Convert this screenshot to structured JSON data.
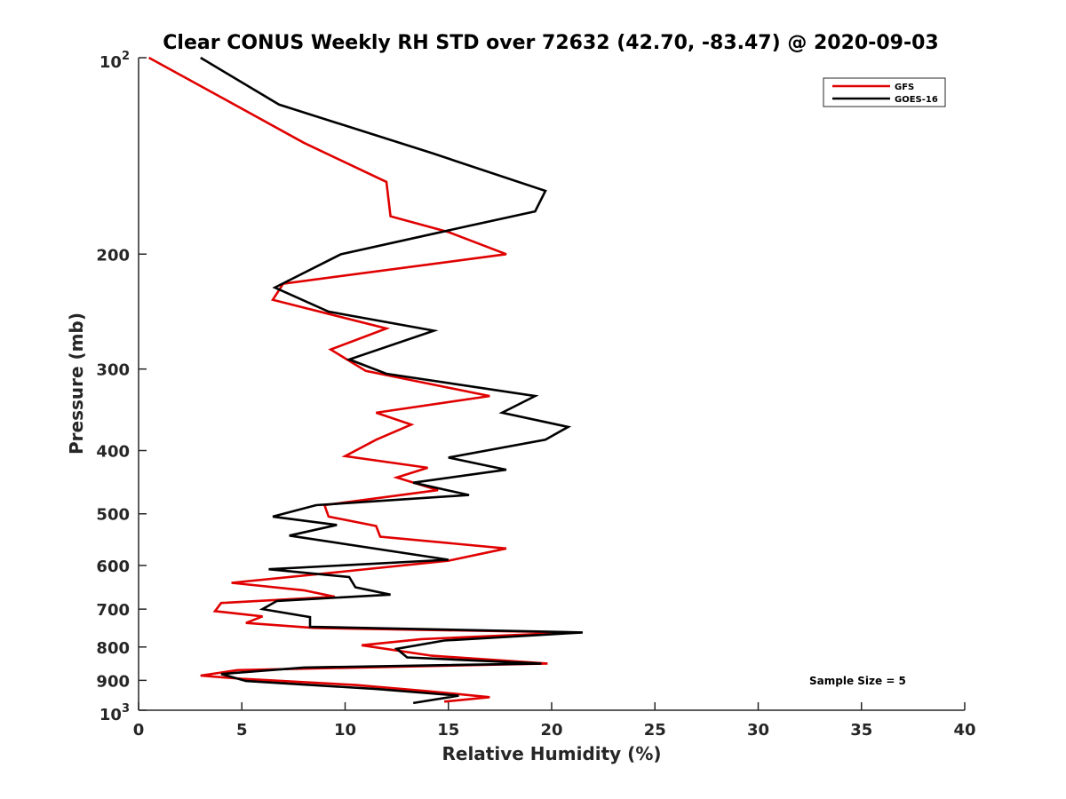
{
  "chart_data": {
    "type": "line",
    "title": "Clear CONUS Weekly RH STD over 72632 (42.70, -83.47) @ 2020-09-03",
    "xlabel": "Relative Humidity (%)",
    "ylabel": "Pressure (mb)",
    "xlim": [
      0,
      40
    ],
    "ylim": [
      100,
      1000
    ],
    "y_scale": "log",
    "y_reversed": true,
    "xticks": [
      0,
      5,
      10,
      15,
      20,
      25,
      30,
      35,
      40
    ],
    "xtick_labels": [
      "0",
      "5",
      "10",
      "15",
      "20",
      "25",
      "30",
      "35",
      "40"
    ],
    "yticks": [
      200,
      300,
      400,
      500,
      600,
      700,
      800,
      900
    ],
    "ytick_labels": [
      "200",
      "300",
      "400",
      "500",
      "600",
      "700",
      "800",
      "900"
    ],
    "y_end_labels": {
      "top_base": "10",
      "top_exp": "2",
      "bottom_base": "10",
      "bottom_exp": "3"
    },
    "legend_position": "top-right",
    "annotation": "Sample Size = 5",
    "series": [
      {
        "name": "GFS",
        "color": "#e00000",
        "points": [
          [
            0.5,
            100
          ],
          [
            4.0,
            115
          ],
          [
            8.0,
            135
          ],
          [
            12.0,
            155
          ],
          [
            12.2,
            175
          ],
          [
            15.0,
            185
          ],
          [
            17.8,
            200
          ],
          [
            7.0,
            222
          ],
          [
            6.5,
            235
          ],
          [
            12.0,
            260
          ],
          [
            9.3,
            280
          ],
          [
            11.0,
            302
          ],
          [
            17.0,
            330
          ],
          [
            11.5,
            350
          ],
          [
            13.2,
            365
          ],
          [
            11.5,
            385
          ],
          [
            10.0,
            408
          ],
          [
            14.0,
            425
          ],
          [
            12.5,
            440
          ],
          [
            14.5,
            460
          ],
          [
            9.0,
            485
          ],
          [
            9.2,
            505
          ],
          [
            11.5,
            522
          ],
          [
            11.7,
            542
          ],
          [
            17.8,
            565
          ],
          [
            15.0,
            590
          ],
          [
            9.5,
            615
          ],
          [
            4.5,
            638
          ],
          [
            8.0,
            655
          ],
          [
            9.5,
            670
          ],
          [
            4.0,
            685
          ],
          [
            3.7,
            705
          ],
          [
            6.0,
            718
          ],
          [
            5.2,
            735
          ],
          [
            8.5,
            748
          ],
          [
            21.0,
            760
          ],
          [
            13.7,
            778
          ],
          [
            10.8,
            795
          ],
          [
            14.2,
            825
          ],
          [
            19.8,
            848
          ],
          [
            4.8,
            868
          ],
          [
            3.0,
            885
          ],
          [
            5.0,
            895
          ],
          [
            10.5,
            915
          ],
          [
            14.0,
            935
          ],
          [
            17.0,
            955
          ],
          [
            14.8,
            970
          ]
        ]
      },
      {
        "name": "GOES-16",
        "color": "#000000",
        "points": [
          [
            3.0,
            100
          ],
          [
            6.8,
            118
          ],
          [
            14.2,
            140
          ],
          [
            19.7,
            160
          ],
          [
            19.2,
            172
          ],
          [
            16.0,
            181
          ],
          [
            9.8,
            200
          ],
          [
            6.6,
            225
          ],
          [
            9.2,
            245
          ],
          [
            14.3,
            262
          ],
          [
            10.2,
            290
          ],
          [
            12.0,
            305
          ],
          [
            19.2,
            330
          ],
          [
            17.6,
            350
          ],
          [
            20.8,
            368
          ],
          [
            19.7,
            385
          ],
          [
            15.0,
            410
          ],
          [
            17.8,
            428
          ],
          [
            13.3,
            448
          ],
          [
            16.0,
            468
          ],
          [
            8.6,
            485
          ],
          [
            6.5,
            505
          ],
          [
            9.6,
            520
          ],
          [
            7.3,
            540
          ],
          [
            15.0,
            588
          ],
          [
            6.3,
            608
          ],
          [
            10.2,
            625
          ],
          [
            10.5,
            648
          ],
          [
            12.2,
            665
          ],
          [
            6.7,
            680
          ],
          [
            6.0,
            700
          ],
          [
            8.3,
            720
          ],
          [
            8.3,
            745
          ],
          [
            21.5,
            760
          ],
          [
            14.8,
            782
          ],
          [
            12.5,
            805
          ],
          [
            13.0,
            830
          ],
          [
            19.5,
            848
          ],
          [
            8.0,
            860
          ],
          [
            4.0,
            880
          ],
          [
            5.2,
            902
          ],
          [
            11.5,
            928
          ],
          [
            15.5,
            950
          ],
          [
            13.3,
            975
          ]
        ]
      }
    ]
  }
}
